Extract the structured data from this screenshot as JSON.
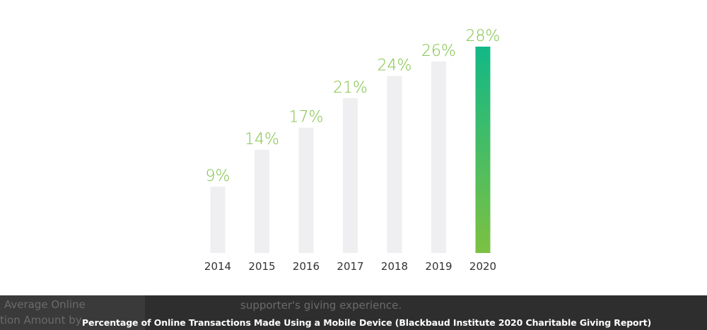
{
  "chart_data": {
    "type": "bar",
    "categories": [
      "2014",
      "2015",
      "2016",
      "2017",
      "2018",
      "2019",
      "2020"
    ],
    "values": [
      9,
      14,
      17,
      21,
      24,
      26,
      28
    ],
    "value_labels": [
      "9%",
      "14%",
      "17%",
      "21%",
      "24%",
      "26%",
      "28%"
    ],
    "ylim": [
      0,
      28
    ],
    "grid": false,
    "highlight_index": 6,
    "colors": {
      "bar": "#efeff1",
      "highlight_top": "#12b886",
      "highlight_bottom": "#7cc142",
      "value_label": "#7cc142",
      "tick_label": "#333333"
    }
  },
  "caption": {
    "text": "Percentage of Online Transactions Made Using a Mobile Device (Blackbaud Institute 2020 Charitable Giving Report)",
    "background_text_1": "Average Online",
    "background_text_2": "tion Amount by",
    "background_text_3": "supporter's giving experience."
  }
}
